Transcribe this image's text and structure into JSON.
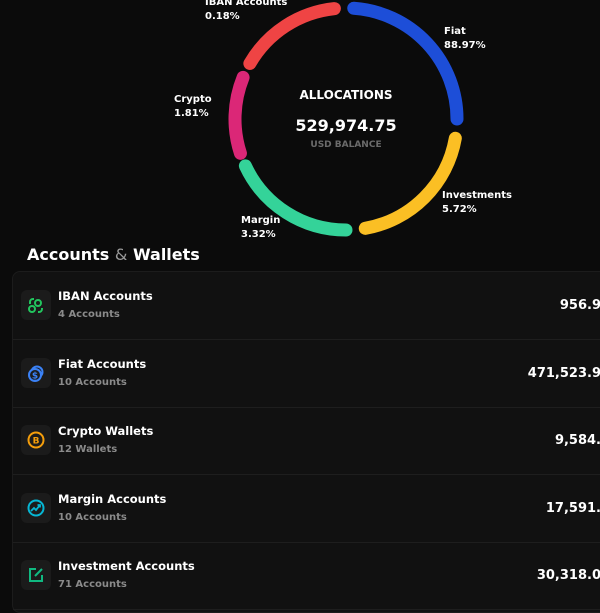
{
  "allocations": {
    "title": "ALLOCATIONS",
    "balance": "529,974.75",
    "balance_label": "USD BALANCE",
    "segments": [
      {
        "name": "IBAN Accounts",
        "percent_label": "0.18%",
        "percent": 0.18,
        "color": "#ef4444"
      },
      {
        "name": "Fiat",
        "percent_label": "88.97%",
        "percent": 88.97,
        "color": "#1d4ed8"
      },
      {
        "name": "Investments",
        "percent_label": "5.72%",
        "percent": 5.72,
        "color": "#fbbf24"
      },
      {
        "name": "Margin",
        "percent_label": "3.32%",
        "percent": 3.32,
        "color": "#34d399"
      },
      {
        "name": "Crypto",
        "percent_label": "1.81%",
        "percent": 1.81,
        "color": "#db2777"
      }
    ]
  },
  "section": {
    "title_a": "Accounts",
    "amp": "&",
    "title_b": "Wallets"
  },
  "accounts": [
    {
      "title": "IBAN Accounts",
      "subtitle": "4 Accounts",
      "value": "956.9",
      "icon": "iban-icon",
      "color": "#22c55e"
    },
    {
      "title": "Fiat Accounts",
      "subtitle": "10 Accounts",
      "value": "471,523.9",
      "icon": "coins-dollar-icon",
      "color": "#3b82f6"
    },
    {
      "title": "Crypto Wallets",
      "subtitle": "12 Wallets",
      "value": "9,584.",
      "icon": "bitcoin-icon",
      "color": "#f59e0b"
    },
    {
      "title": "Margin Accounts",
      "subtitle": "10 Accounts",
      "value": "17,591.",
      "icon": "trend-up-icon",
      "color": "#06b6d4"
    },
    {
      "title": "Investment Accounts",
      "subtitle": "71 Accounts",
      "value": "30,318.0",
      "icon": "edit-square-icon",
      "color": "#10b981"
    }
  ]
}
